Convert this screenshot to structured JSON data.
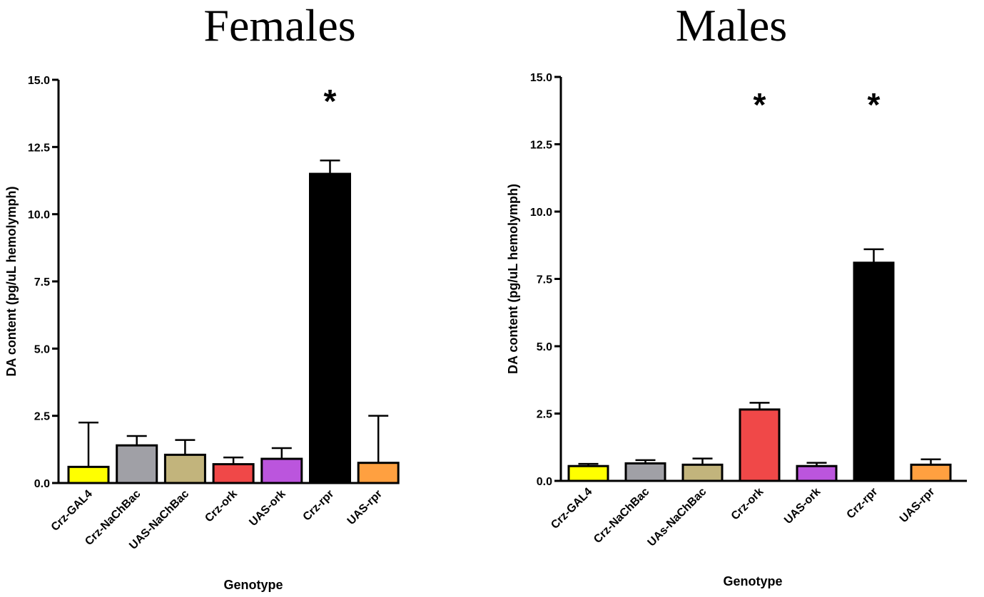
{
  "chart_data": [
    {
      "type": "bar",
      "title": "Females",
      "xlabel": "Genotype",
      "ylabel": "DA content (pg/uL hemolymph)",
      "ylim": [
        0,
        15
      ],
      "yticks": [
        "0.0",
        "2.5",
        "5.0",
        "7.5",
        "10.0",
        "12.5",
        "15.0"
      ],
      "categories": [
        "Crz-GAL4",
        "Crz-NaChBac",
        "UAS-NaChBac",
        "Crz-ork",
        "UAS-ork",
        "Crz-rpr",
        "UAS-rpr"
      ],
      "values": [
        0.6,
        1.4,
        1.05,
        0.7,
        0.9,
        11.5,
        0.75
      ],
      "errors": [
        1.65,
        0.35,
        0.55,
        0.25,
        0.4,
        0.5,
        1.75
      ],
      "colors": [
        "#ffff00",
        "#a0a0a6",
        "#c2b47c",
        "#f04848",
        "#bb55dd",
        "#000000",
        "#ffa040"
      ],
      "significant": [
        "",
        "",
        "",
        "",
        "",
        "*",
        ""
      ],
      "grid": false,
      "legend": "none"
    },
    {
      "type": "bar",
      "title": "Males",
      "xlabel": "Genotype",
      "ylabel": "DA content (pg/uL hemolymph)",
      "ylim": [
        0,
        15
      ],
      "yticks": [
        "0.0",
        "2.5",
        "5.0",
        "7.5",
        "10.0",
        "12.5",
        "15.0"
      ],
      "categories": [
        "Crz-GAL4",
        "Crz-NaChBac",
        "UAs-NaChBac",
        "Crz-ork",
        "UAS-ork",
        "Crz-rpr",
        "UAS-rpr"
      ],
      "values": [
        0.55,
        0.65,
        0.6,
        2.65,
        0.55,
        8.1,
        0.6
      ],
      "errors": [
        0.08,
        0.12,
        0.23,
        0.25,
        0.12,
        0.5,
        0.2
      ],
      "colors": [
        "#ffff00",
        "#a0a0a6",
        "#c2b47c",
        "#f04848",
        "#bb55dd",
        "#000000",
        "#ffa040"
      ],
      "significant": [
        "",
        "",
        "",
        "*",
        "",
        "*",
        ""
      ],
      "grid": false,
      "legend": "none"
    }
  ]
}
